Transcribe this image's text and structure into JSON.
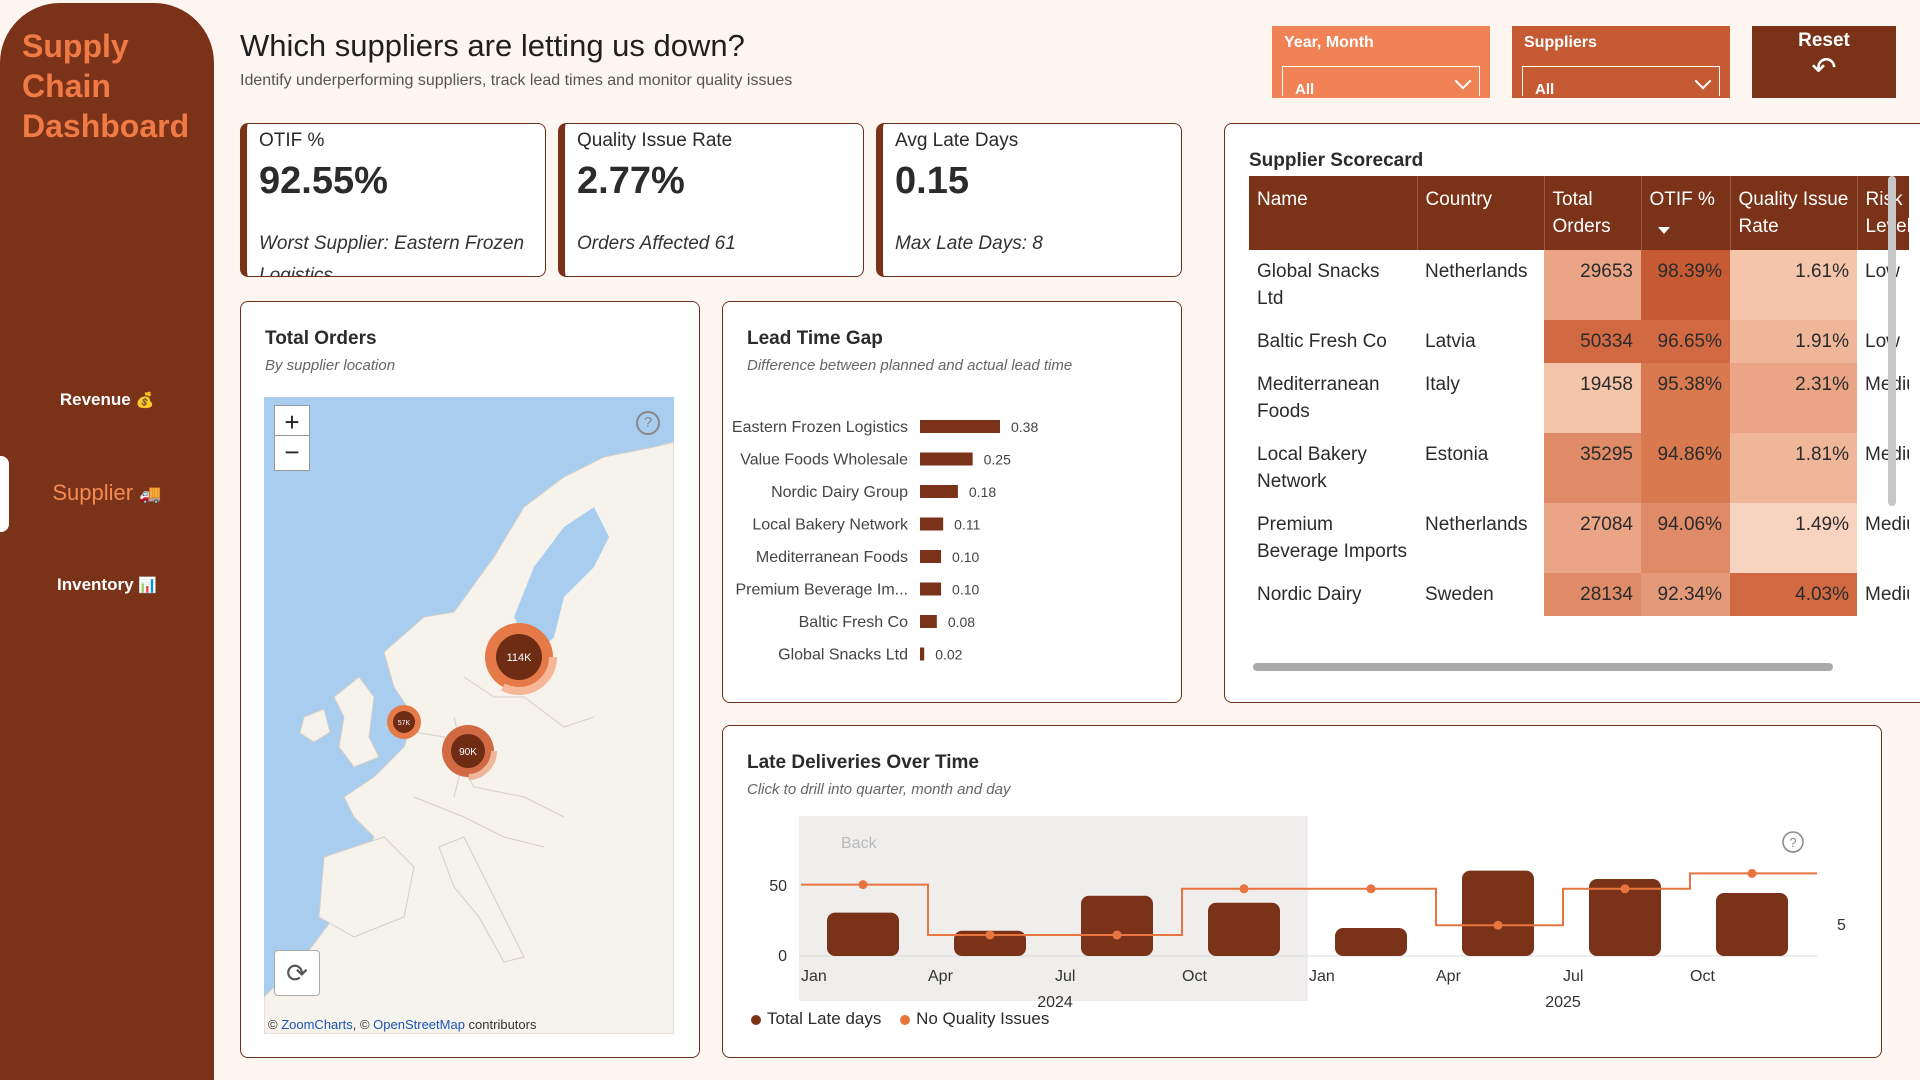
{
  "sidebar": {
    "brand": [
      "Supply",
      "Chain",
      "Dashboard"
    ],
    "nav": [
      {
        "label": "Revenue",
        "icon": "money-bag-icon",
        "glyph": "💰"
      },
      {
        "label": "Supplier",
        "icon": "truck-icon",
        "glyph": "🚚"
      },
      {
        "label": "Inventory",
        "icon": "inventory-icon",
        "glyph": "📊"
      }
    ]
  },
  "header": {
    "title": "Which suppliers are letting us down?",
    "subtitle": "Identify underperforming suppliers, track lead times and monitor quality issues"
  },
  "filters": {
    "year_month": {
      "label": "Year, Month",
      "value": "All"
    },
    "suppliers": {
      "label": "Suppliers",
      "value": "All"
    },
    "reset": {
      "label": "Reset",
      "glyph": "↶"
    }
  },
  "kpis": [
    {
      "label": "OTIF %",
      "value": "92.55%",
      "sub_prefix": "Worst Supplier: ",
      "sub_value": "Eastern Frozen Logistics"
    },
    {
      "label": "Quality Issue Rate",
      "value": "2.77%",
      "sub_prefix": "Orders Affected ",
      "sub_value": "61"
    },
    {
      "label": "Avg Late Days",
      "value": "0.15",
      "sub_prefix": "Max Late Days: ",
      "sub_value": "8"
    }
  ],
  "map_card": {
    "title": "Total Orders",
    "subtitle": "By supplier location",
    "zoom_in": "+",
    "zoom_out": "−",
    "help": "?",
    "refresh": "⟳",
    "attribution": [
      "© ",
      "ZoomCharts",
      ", © ",
      "OpenStreetMap",
      " contributors"
    ],
    "bubbles": [
      {
        "label": "114K"
      },
      {
        "label": "90K"
      },
      {
        "label": "57K"
      }
    ]
  },
  "lead_time_card": {
    "title": "Lead Time Gap",
    "subtitle": "Difference between planned and actual lead time"
  },
  "scorecard": {
    "title": "Supplier Scorecard",
    "columns": [
      "Name",
      "Country",
      "Total Orders",
      "OTIF %",
      "Quality Issue Rate",
      "Risk Level"
    ],
    "rows": [
      {
        "name": "Global Snacks Ltd",
        "country": "Netherlands",
        "orders": "29653",
        "otif": "98.39%",
        "quality": "1.61%",
        "risk": "Low"
      },
      {
        "name": "Baltic Fresh Co",
        "country": "Latvia",
        "orders": "50334",
        "otif": "96.65%",
        "quality": "1.91%",
        "risk": "Low"
      },
      {
        "name": "Mediterranean Foods",
        "country": "Italy",
        "orders": "19458",
        "otif": "95.38%",
        "quality": "2.31%",
        "risk": "Medium"
      },
      {
        "name": "Local Bakery Network",
        "country": "Estonia",
        "orders": "35295",
        "otif": "94.86%",
        "quality": "1.81%",
        "risk": "Medium"
      },
      {
        "name": "Premium Beverage Imports",
        "country": "Netherlands",
        "orders": "27084",
        "otif": "94.06%",
        "quality": "1.49%",
        "risk": "Medium"
      },
      {
        "name": "Nordic Dairy",
        "country": "Sweden",
        "orders": "28134",
        "otif": "92.34%",
        "quality": "4.03%",
        "risk": "Medium"
      }
    ],
    "colors": {
      "orders": [
        "#e9a585",
        "#d16a43",
        "#f4c4ab",
        "#df8b67",
        "#e9a585",
        "#df8b67"
      ],
      "otif": [
        "#c65a33",
        "#d16a43",
        "#d8794f",
        "#d8794f",
        "#df8b67",
        "#e49a78"
      ],
      "quality": [
        "#f4c4ab",
        "#f0b699",
        "#e9a585",
        "#f0b699",
        "#f8d3c0",
        "#d16a43"
      ]
    }
  },
  "late_card": {
    "title": "Late Deliveries Over Time",
    "subtitle": "Click to drill into quarter, month and day",
    "back": "Back",
    "help": "?",
    "legend": [
      "Total Late days",
      "No Quality Issues"
    ]
  },
  "chart_data": [
    {
      "type": "bar",
      "title": "Lead Time Gap",
      "categories": [
        "Eastern Frozen Logistics",
        "Value Foods Wholesale",
        "Nordic Dairy Group",
        "Local Bakery Network",
        "Mediterranean Foods",
        "Premium Beverage Im...",
        "Baltic Fresh Co",
        "Global Snacks Ltd"
      ],
      "values": [
        0.38,
        0.25,
        0.18,
        0.11,
        0.1,
        0.1,
        0.08,
        0.02
      ],
      "data_labels": [
        "0.38",
        "0.25",
        "0.18",
        "0.11",
        "0.10",
        "0.10",
        "0.08",
        "0.02"
      ],
      "orientation": "horizontal",
      "color": "#7a3318"
    },
    {
      "type": "bar",
      "title": "Late Deliveries Over Time",
      "categories": [
        "Q1 2024",
        "Q2 2024",
        "Q3 2024",
        "Q4 2024",
        "Q1 2025",
        "Q2 2025",
        "Q3 2025",
        "Q4 2025"
      ],
      "x_tick_labels": [
        "Jan",
        "Apr",
        "Jul",
        "Oct",
        "Jan",
        "Apr",
        "Jul",
        "Oct"
      ],
      "year_labels": [
        "2024",
        "2025"
      ],
      "series": [
        {
          "name": "Total Late days",
          "values": [
            31,
            18,
            43,
            38,
            20,
            61,
            55,
            45
          ],
          "color": "#7a3318"
        },
        {
          "name": "No Quality Issues",
          "values": [
            51,
            15,
            15,
            48,
            48,
            22,
            48,
            59
          ],
          "color": "#e8743f"
        }
      ],
      "ylim": [
        0,
        60
      ],
      "y_ticks": [
        0,
        50
      ],
      "right_axis_ticks": [
        "5"
      ],
      "legend": "bottom-left"
    }
  ]
}
